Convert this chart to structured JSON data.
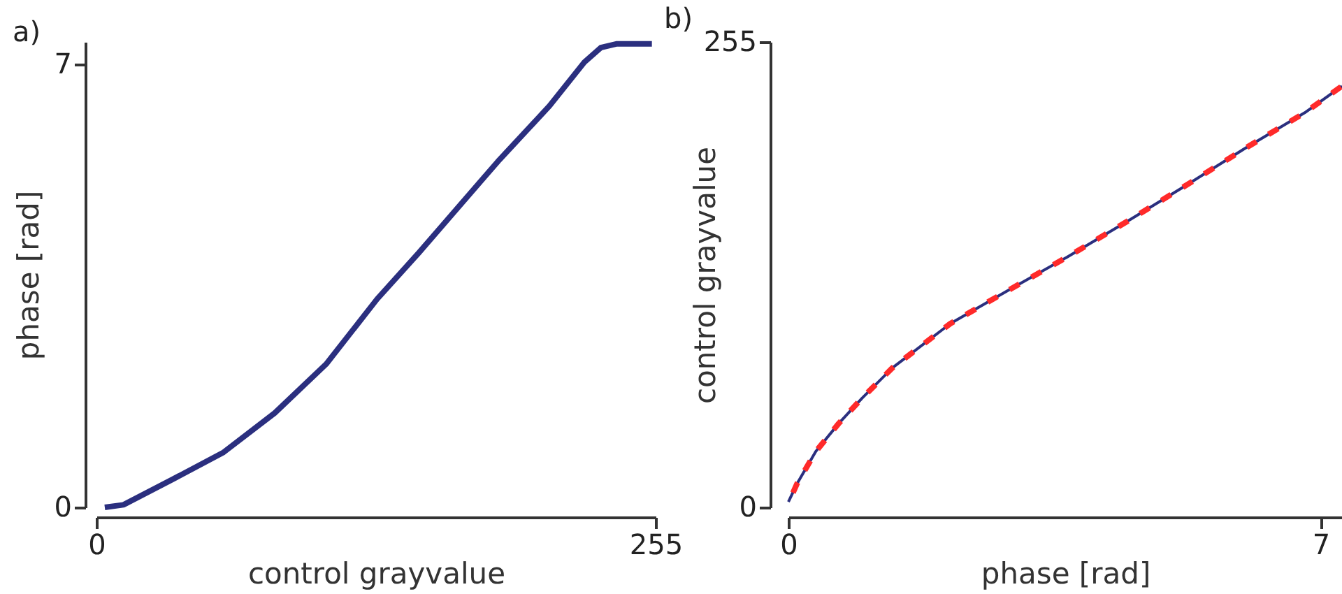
{
  "chart_data": [
    {
      "type": "line",
      "title": "a)",
      "xlabel": "control grayvalue",
      "ylabel": "phase [rad]",
      "xlim": [
        0,
        255
      ],
      "xticks": [
        0,
        255
      ],
      "ylim": [
        0,
        7.35
      ],
      "yticks": [
        0,
        7
      ],
      "x": [
        3.8,
        12.3,
        34.6,
        58,
        81.3,
        104.7,
        128,
        147,
        160,
        183,
        206.6,
        222.5,
        230,
        237.4,
        253.3
      ],
      "series": [
        {
          "color": "#2b2f7f",
          "values": [
            0,
            0.04,
            0.44,
            0.87,
            1.49,
            2.26,
            3.29,
            4.02,
            4.54,
            5.46,
            6.34,
            7.03,
            7.26,
            7.32,
            7.32
          ]
        }
      ]
    },
    {
      "type": "line",
      "title": "b)",
      "xlabel": "phase [rad]",
      "ylabel": "control grayvalue",
      "xlim": [
        0,
        7.28
      ],
      "xticks": [
        0,
        7
      ],
      "ylim": [
        0,
        255
      ],
      "yticks": [
        0,
        255
      ],
      "series": [
        {
          "color": "#2b2f7f",
          "line_style": "solid",
          "x": [
            0,
            0.11,
            0.36,
            0.66,
            0.97,
            1.37,
            2.13,
            2.93,
            3.66,
            4.46,
            5.26,
            5.99,
            6.79,
            7.28
          ],
          "values": [
            3,
            12.7,
            30.6,
            45.9,
            59.9,
            76.5,
            100.7,
            119.8,
            137,
            156.8,
            177.2,
            196.3,
            216.2,
            230.8
          ]
        },
        {
          "color": "#ff2a2a",
          "line_style": "dashed",
          "x": [
            0.06,
            0.11,
            0.36,
            0.66,
            0.97,
            1.37,
            2.13,
            2.93,
            3.66,
            4.46,
            5.26,
            5.99,
            6.79,
            7.28
          ],
          "values": [
            8,
            12.7,
            30.6,
            45.9,
            59.9,
            76.5,
            100.7,
            119.8,
            137,
            156.8,
            177.2,
            196.3,
            216.2,
            230.8
          ]
        }
      ]
    }
  ]
}
